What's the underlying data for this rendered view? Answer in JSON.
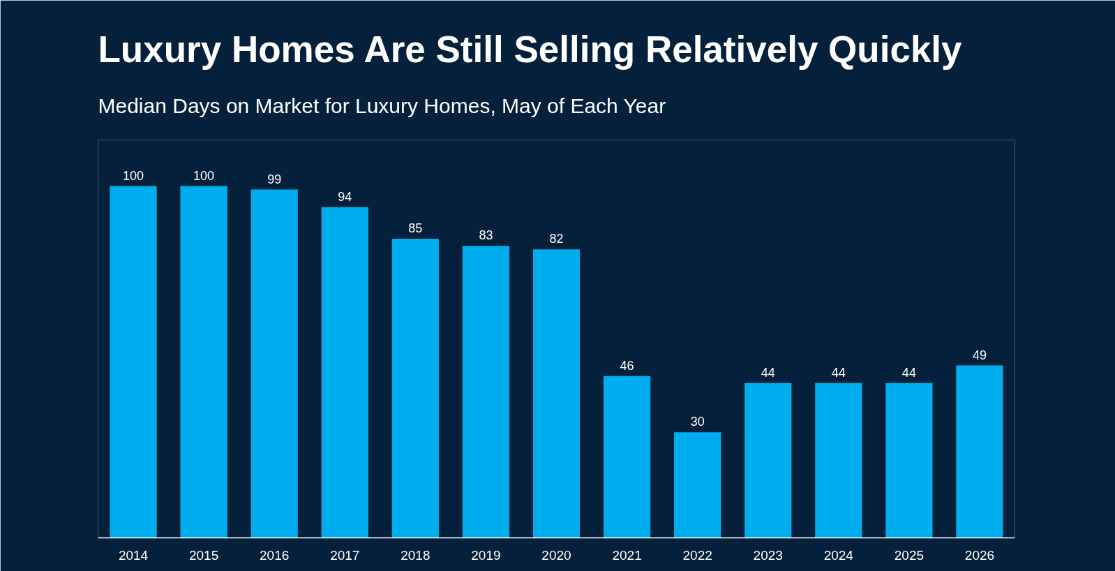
{
  "chart_data": {
    "type": "bar",
    "title": "Luxury Homes Are Still Selling Relatively Quickly",
    "subtitle": "Median Days on Market for Luxury Homes, May of Each Year",
    "categories": [
      "2014",
      "2015",
      "2016",
      "2017",
      "2018",
      "2019",
      "2020",
      "2021",
      "2022",
      "2023",
      "2024",
      "2025",
      "2026"
    ],
    "values": [
      100,
      100,
      99,
      94,
      85,
      83,
      82,
      46,
      30,
      44,
      44,
      44,
      49
    ],
    "color": "#00aeef",
    "data_labels": true
  }
}
